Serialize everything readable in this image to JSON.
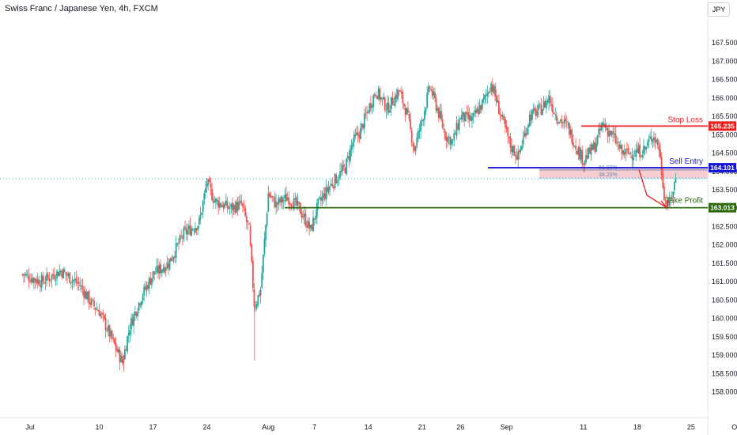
{
  "header": {
    "title": "Swiss Franc / Japanese Yen, 4h, FXCM",
    "currency_badge": "JPY"
  },
  "colors": {
    "up": "#26a69a",
    "down": "#ef5350",
    "stop_loss": "#e91e1e",
    "sell_entry": "#1515d6",
    "take_profit": "#2e6b10",
    "zone": "#f6c6c9",
    "fib": "#5d84b6",
    "axis_text": "#131722"
  },
  "chart_data": {
    "type": "candlestick",
    "title": "Swiss Franc / Japanese Yen, 4h, FXCM",
    "ylim": [
      157.3,
      168.15
    ],
    "y_ticks": [
      "158.000",
      "158.500",
      "159.000",
      "159.500",
      "160.000",
      "160.500",
      "161.000",
      "161.500",
      "162.000",
      "162.500",
      "163.000",
      "163.500",
      "164.000",
      "164.500",
      "165.000",
      "165.500",
      "166.000",
      "166.500",
      "167.000",
      "167.500"
    ],
    "x_ticks": [
      {
        "label": "Jul",
        "day": 1
      },
      {
        "label": "10",
        "day": 10
      },
      {
        "label": "17",
        "day": 17
      },
      {
        "label": "24",
        "day": 24
      },
      {
        "label": "Aug",
        "day": 32
      },
      {
        "label": "7",
        "day": 38
      },
      {
        "label": "14",
        "day": 45
      },
      {
        "label": "21",
        "day": 52
      },
      {
        "label": "26",
        "day": 57
      },
      {
        "label": "Sep",
        "day": 63
      },
      {
        "label": "11",
        "day": 73
      },
      {
        "label": "18",
        "day": 80
      },
      {
        "label": "25",
        "day": 87
      },
      {
        "label": "Oct",
        "day": 93
      }
    ],
    "anchors": [
      [
        0,
        161.2
      ],
      [
        2.5,
        161.0
      ],
      [
        5,
        161.3
      ],
      [
        7.5,
        160.9
      ],
      [
        9,
        160.4
      ],
      [
        10,
        160.2
      ],
      [
        11.5,
        159.5
      ],
      [
        13,
        158.8
      ],
      [
        14,
        159.8
      ],
      [
        15.5,
        160.6
      ],
      [
        17,
        161.2
      ],
      [
        19,
        161.5
      ],
      [
        21,
        162.3
      ],
      [
        23,
        162.6
      ],
      [
        24,
        163.7
      ],
      [
        25,
        163.2
      ],
      [
        27,
        163.0
      ],
      [
        28.5,
        163.1
      ],
      [
        29.5,
        162.4
      ],
      [
        30.2,
        160.3
      ],
      [
        31,
        160.8
      ],
      [
        32,
        163.4
      ],
      [
        33,
        163.1
      ],
      [
        34.5,
        163.3
      ],
      [
        36,
        163.0
      ],
      [
        37.5,
        162.4
      ],
      [
        38.5,
        163.1
      ],
      [
        40,
        163.6
      ],
      [
        42,
        164.1
      ],
      [
        43,
        164.8
      ],
      [
        44,
        165.1
      ],
      [
        45,
        165.7
      ],
      [
        46,
        166.2
      ],
      [
        47.5,
        165.7
      ],
      [
        49,
        166.2
      ],
      [
        50,
        165.6
      ],
      [
        51,
        164.6
      ],
      [
        52,
        165.4
      ],
      [
        53,
        166.3
      ],
      [
        54,
        165.7
      ],
      [
        55,
        165.0
      ],
      [
        56,
        164.8
      ],
      [
        57,
        165.5
      ],
      [
        58.5,
        165.4
      ],
      [
        60,
        165.9
      ],
      [
        61,
        166.4
      ],
      [
        62,
        165.7
      ],
      [
        63.5,
        164.7
      ],
      [
        64.5,
        164.4
      ],
      [
        66,
        165.5
      ],
      [
        67.5,
        165.7
      ],
      [
        68.5,
        166.0
      ],
      [
        69.5,
        165.5
      ],
      [
        71,
        165.2
      ],
      [
        72,
        164.7
      ],
      [
        73,
        164.3
      ],
      [
        74.5,
        164.7
      ],
      [
        75.5,
        165.3
      ],
      [
        77,
        164.9
      ],
      [
        78,
        164.5
      ],
      [
        79.5,
        164.5
      ],
      [
        81,
        164.6
      ],
      [
        82,
        165.0
      ],
      [
        82.8,
        164.7
      ],
      [
        83.6,
        163.2
      ],
      [
        84.2,
        163.1
      ],
      [
        85,
        163.8
      ]
    ],
    "annotations": {
      "stop_loss": {
        "label": "Stop Loss",
        "price": 165.235,
        "price_text": "165.235"
      },
      "sell_entry": {
        "label": "Sell Entry",
        "price": 164.101,
        "price_text": "164.101"
      },
      "take_profit": {
        "label": "Take Profit",
        "price": 163.013,
        "price_text": "163.013"
      },
      "fib_50": {
        "label": "50.00%",
        "price": 164.04
      },
      "fib_38": {
        "label": "38.20%",
        "price": 163.82
      },
      "resistance_zone": {
        "top": 164.08,
        "bottom": 163.82
      },
      "current_price_dotted": 163.8
    }
  }
}
